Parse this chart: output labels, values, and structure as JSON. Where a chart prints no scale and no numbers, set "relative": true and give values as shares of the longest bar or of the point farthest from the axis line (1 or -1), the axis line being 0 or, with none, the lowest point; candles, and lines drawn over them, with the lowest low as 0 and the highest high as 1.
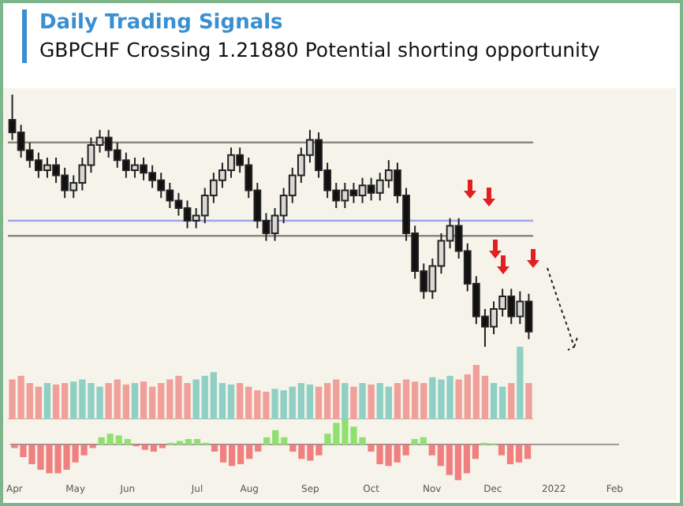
{
  "chart_data": [
    {
      "type": "candlestick",
      "title": "Daily Trading Signals",
      "subtitle": "GBPCHF Crossing 1.21880 Potential shorting opportunity",
      "relative": true,
      "categories": [
        null,
        null,
        null,
        null,
        null,
        null,
        null,
        null,
        null,
        null,
        null,
        null,
        null,
        null,
        null,
        null,
        null,
        null,
        null,
        null,
        null,
        null,
        null,
        null,
        null,
        null,
        null,
        null,
        null,
        null,
        null,
        null,
        null,
        null,
        null,
        null,
        null,
        null,
        null,
        null,
        null,
        null,
        null,
        null,
        null,
        null,
        null,
        null,
        null,
        null,
        null,
        null,
        null,
        null,
        null,
        null,
        null,
        null,
        null,
        null
      ],
      "ohlc": [
        [
          0.9,
          1.0,
          0.82,
          0.85
        ],
        [
          0.85,
          0.88,
          0.75,
          0.78
        ],
        [
          0.78,
          0.81,
          0.71,
          0.74
        ],
        [
          0.74,
          0.77,
          0.67,
          0.7
        ],
        [
          0.7,
          0.75,
          0.67,
          0.72
        ],
        [
          0.72,
          0.75,
          0.65,
          0.68
        ],
        [
          0.68,
          0.71,
          0.59,
          0.62
        ],
        [
          0.62,
          0.68,
          0.59,
          0.65
        ],
        [
          0.65,
          0.75,
          0.62,
          0.72
        ],
        [
          0.72,
          0.83,
          0.69,
          0.8
        ],
        [
          0.8,
          0.86,
          0.77,
          0.83
        ],
        [
          0.83,
          0.86,
          0.75,
          0.78
        ],
        [
          0.78,
          0.81,
          0.71,
          0.74
        ],
        [
          0.74,
          0.77,
          0.67,
          0.7
        ],
        [
          0.7,
          0.75,
          0.67,
          0.72
        ],
        [
          0.72,
          0.75,
          0.66,
          0.69
        ],
        [
          0.69,
          0.72,
          0.63,
          0.66
        ],
        [
          0.66,
          0.69,
          0.59,
          0.62
        ],
        [
          0.62,
          0.65,
          0.55,
          0.58
        ],
        [
          0.58,
          0.61,
          0.52,
          0.55
        ],
        [
          0.55,
          0.58,
          0.47,
          0.5
        ],
        [
          0.5,
          0.55,
          0.47,
          0.52
        ],
        [
          0.52,
          0.63,
          0.49,
          0.6
        ],
        [
          0.6,
          0.69,
          0.57,
          0.66
        ],
        [
          0.66,
          0.73,
          0.63,
          0.7
        ],
        [
          0.7,
          0.79,
          0.67,
          0.76
        ],
        [
          0.76,
          0.79,
          0.69,
          0.72
        ],
        [
          0.72,
          0.75,
          0.59,
          0.62
        ],
        [
          0.62,
          0.65,
          0.47,
          0.5
        ],
        [
          0.5,
          0.53,
          0.42,
          0.45
        ],
        [
          0.45,
          0.55,
          0.42,
          0.52
        ],
        [
          0.52,
          0.63,
          0.49,
          0.6
        ],
        [
          0.6,
          0.71,
          0.57,
          0.68
        ],
        [
          0.68,
          0.79,
          0.65,
          0.76
        ],
        [
          0.76,
          0.86,
          0.73,
          0.82
        ],
        [
          0.82,
          0.85,
          0.67,
          0.7
        ],
        [
          0.7,
          0.73,
          0.59,
          0.62
        ],
        [
          0.62,
          0.65,
          0.55,
          0.58
        ],
        [
          0.58,
          0.65,
          0.55,
          0.62
        ],
        [
          0.62,
          0.65,
          0.57,
          0.6
        ],
        [
          0.6,
          0.67,
          0.57,
          0.64
        ],
        [
          0.64,
          0.67,
          0.58,
          0.61
        ],
        [
          0.61,
          0.69,
          0.58,
          0.66
        ],
        [
          0.66,
          0.74,
          0.63,
          0.7
        ],
        [
          0.7,
          0.73,
          0.57,
          0.6
        ],
        [
          0.6,
          0.63,
          0.42,
          0.45
        ],
        [
          0.45,
          0.48,
          0.27,
          0.3
        ],
        [
          0.3,
          0.33,
          0.19,
          0.22
        ],
        [
          0.22,
          0.35,
          0.19,
          0.32
        ],
        [
          0.32,
          0.45,
          0.29,
          0.42
        ],
        [
          0.42,
          0.51,
          0.39,
          0.48
        ],
        [
          0.48,
          0.51,
          0.35,
          0.38
        ],
        [
          0.38,
          0.41,
          0.22,
          0.25
        ],
        [
          0.25,
          0.28,
          0.09,
          0.12
        ],
        [
          0.12,
          0.15,
          0.0,
          0.08
        ],
        [
          0.08,
          0.18,
          0.05,
          0.15
        ],
        [
          0.15,
          0.23,
          0.12,
          0.2
        ],
        [
          0.2,
          0.23,
          0.09,
          0.12
        ],
        [
          0.12,
          0.22,
          0.09,
          0.18
        ],
        [
          0.18,
          0.21,
          0.03,
          0.06
        ]
      ],
      "ref_lines": [
        {
          "axis": "y",
          "value": 0.5,
          "color": "#a0a6e8"
        },
        {
          "axis": "y",
          "value": 0.81,
          "color": "#8a8a80"
        },
        {
          "axis": "y",
          "value": 0.44,
          "color": "#8a8a80"
        }
      ],
      "legend": false,
      "grid": false
    },
    {
      "type": "bar",
      "relative": true,
      "categories": [
        null,
        null,
        null,
        null,
        null,
        null,
        null,
        null,
        null,
        null,
        null,
        null,
        null,
        null,
        null,
        null,
        null,
        null,
        null,
        null,
        null,
        null,
        null,
        null,
        null,
        null,
        null,
        null,
        null,
        null,
        null,
        null,
        null,
        null,
        null,
        null,
        null,
        null,
        null,
        null,
        null,
        null,
        null,
        null,
        null,
        null,
        null,
        null,
        null,
        null,
        null,
        null,
        null,
        null,
        null,
        null,
        null,
        null,
        null,
        null
      ],
      "values": [
        0.55,
        0.6,
        0.5,
        0.45,
        0.5,
        0.48,
        0.5,
        0.52,
        0.55,
        0.5,
        0.45,
        0.5,
        0.55,
        0.48,
        0.5,
        0.52,
        0.45,
        0.5,
        0.55,
        0.6,
        0.5,
        0.55,
        0.6,
        0.65,
        0.5,
        0.48,
        0.5,
        0.45,
        0.4,
        0.38,
        0.42,
        0.4,
        0.45,
        0.5,
        0.48,
        0.45,
        0.5,
        0.55,
        0.5,
        0.45,
        0.5,
        0.48,
        0.5,
        0.45,
        0.5,
        0.55,
        0.52,
        0.5,
        0.58,
        0.55,
        0.6,
        0.55,
        0.62,
        0.75,
        0.6,
        0.5,
        0.45,
        0.5,
        1.0,
        0.5
      ],
      "colors": [
        "#f0a09a",
        "#f0a09a",
        "#f0a09a",
        "#f0a09a",
        "#8fcfc4",
        "#f0a09a",
        "#f0a09a",
        "#8fcfc4",
        "#8fcfc4",
        "#8fcfc4",
        "#8fcfc4",
        "#f0a09a",
        "#f0a09a",
        "#f0a09a",
        "#8fcfc4",
        "#f0a09a",
        "#f0a09a",
        "#f0a09a",
        "#f0a09a",
        "#f0a09a",
        "#f0a09a",
        "#8fcfc4",
        "#8fcfc4",
        "#8fcfc4",
        "#8fcfc4",
        "#8fcfc4",
        "#f0a09a",
        "#f0a09a",
        "#f0a09a",
        "#f0a09a",
        "#8fcfc4",
        "#8fcfc4",
        "#8fcfc4",
        "#8fcfc4",
        "#8fcfc4",
        "#f0a09a",
        "#f0a09a",
        "#f0a09a",
        "#8fcfc4",
        "#f0a09a",
        "#8fcfc4",
        "#f0a09a",
        "#8fcfc4",
        "#8fcfc4",
        "#f0a09a",
        "#f0a09a",
        "#f0a09a",
        "#f0a09a",
        "#8fcfc4",
        "#8fcfc4",
        "#8fcfc4",
        "#f0a09a",
        "#f0a09a",
        "#f0a09a",
        "#f0a09a",
        "#8fcfc4",
        "#8fcfc4",
        "#f0a09a",
        "#8fcfc4",
        "#f0a09a"
      ],
      "legend": false,
      "grid": false
    },
    {
      "type": "bar",
      "relative": true,
      "categories": [
        "Apr",
        null,
        null,
        null,
        null,
        null,
        null,
        "May",
        null,
        null,
        null,
        null,
        null,
        "Jun",
        null,
        null,
        null,
        null,
        null,
        null,
        null,
        "Jul",
        null,
        null,
        null,
        null,
        null,
        "Aug",
        null,
        null,
        null,
        null,
        null,
        null,
        "Sep",
        null,
        null,
        null,
        null,
        null,
        null,
        "Oct",
        null,
        null,
        null,
        null,
        null,
        null,
        "Nov",
        null,
        null,
        null,
        null,
        null,
        null,
        "Dec",
        null,
        null,
        null,
        null,
        null,
        null,
        "2022",
        null,
        null,
        null,
        null,
        null,
        null,
        "Feb"
      ],
      "values": [
        -0.1,
        -0.35,
        -0.55,
        -0.7,
        -0.8,
        -0.8,
        -0.7,
        -0.5,
        -0.3,
        -0.1,
        0.2,
        0.3,
        0.25,
        0.15,
        -0.05,
        -0.15,
        -0.2,
        -0.1,
        0.05,
        0.1,
        0.15,
        0.15,
        0.05,
        -0.2,
        -0.5,
        -0.6,
        -0.55,
        -0.4,
        -0.2,
        0.2,
        0.4,
        0.2,
        -0.2,
        -0.4,
        -0.45,
        -0.3,
        0.3,
        0.6,
        0.7,
        0.5,
        0.2,
        -0.2,
        -0.55,
        -0.6,
        -0.5,
        -0.3,
        0.15,
        0.2,
        -0.3,
        -0.6,
        -0.85,
        -1,
        -0.8,
        -0.4,
        0.05,
        0.03,
        -0.3,
        -0.55,
        -0.5,
        -0.4,
        null,
        null,
        null,
        null,
        null,
        null,
        null,
        null,
        null,
        null
      ],
      "colors": [
        "#f08080",
        "#f08080",
        "#f08080",
        "#f08080",
        "#f08080",
        "#f08080",
        "#f08080",
        "#f08080",
        "#f08080",
        "#f08080",
        "#90e070",
        "#90e070",
        "#90e070",
        "#90e070",
        "#f08080",
        "#f08080",
        "#f08080",
        "#f08080",
        "#90e070",
        "#90e070",
        "#90e070",
        "#90e070",
        "#90e070",
        "#f08080",
        "#f08080",
        "#f08080",
        "#f08080",
        "#f08080",
        "#f08080",
        "#90e070",
        "#90e070",
        "#90e070",
        "#f08080",
        "#f08080",
        "#f08080",
        "#f08080",
        "#90e070",
        "#90e070",
        "#90e070",
        "#90e070",
        "#90e070",
        "#f08080",
        "#f08080",
        "#f08080",
        "#f08080",
        "#f08080",
        "#90e070",
        "#90e070",
        "#f08080",
        "#f08080",
        "#f08080",
        "#f08080",
        "#f08080",
        "#f08080",
        "#90e070",
        "#90e070",
        "#f08080",
        "#f08080",
        "#f08080",
        "#f08080",
        "#f08080",
        "#f08080",
        "#f08080",
        "#f08080",
        "#f08080",
        "#f08080",
        "#f08080",
        "#f08080",
        "#f08080",
        "#f08080"
      ],
      "legend": false,
      "grid": false
    }
  ]
}
